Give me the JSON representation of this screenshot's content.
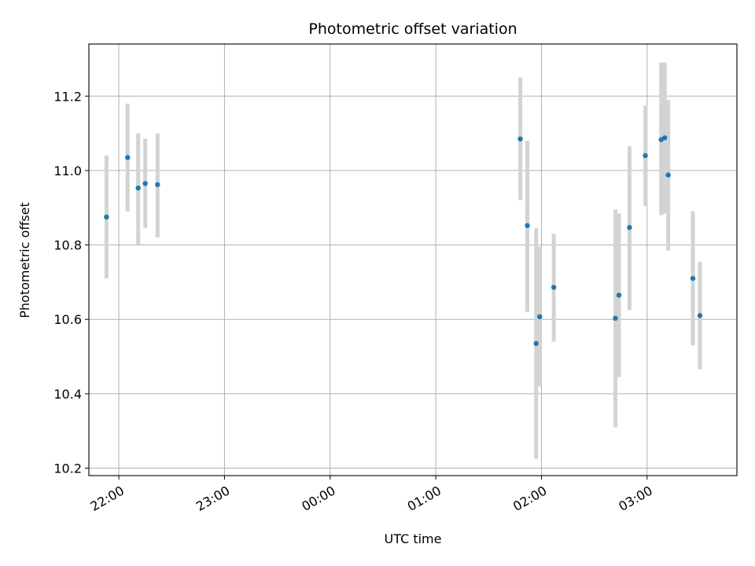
{
  "chart_data": {
    "type": "scatter",
    "title": "Photometric offset variation",
    "xlabel": "UTC time",
    "ylabel": "Photometric offset",
    "grid": true,
    "legend": "none",
    "x_axis": {
      "kind": "time",
      "range": [
        "21:43",
        "03:51"
      ],
      "ticks": [
        "22:00",
        "23:00",
        "00:00",
        "01:00",
        "02:00",
        "03:00"
      ]
    },
    "y_axis": {
      "range": [
        10.18,
        11.34
      ],
      "ticks": [
        10.2,
        10.4,
        10.6,
        10.8,
        11.0,
        11.2
      ],
      "tick_labels": [
        "10.2",
        "10.4",
        "10.6",
        "10.8",
        "11.0",
        "11.2"
      ]
    },
    "colors": {
      "point": "#1f77b4",
      "errorbar": "#d3d3d3",
      "grid": "#b0b0b0"
    },
    "series": [
      {
        "points": [
          {
            "x": "21:53",
            "y": 10.875,
            "ylow": 10.71,
            "yhigh": 11.04
          },
          {
            "x": "22:05",
            "y": 11.035,
            "ylow": 10.89,
            "yhigh": 11.18
          },
          {
            "x": "22:11",
            "y": 10.953,
            "ylow": 10.8,
            "yhigh": 11.1
          },
          {
            "x": "22:15",
            "y": 10.965,
            "ylow": 10.845,
            "yhigh": 11.085
          },
          {
            "x": "22:22",
            "y": 10.962,
            "ylow": 10.82,
            "yhigh": 11.1
          },
          {
            "x": "01:48",
            "y": 11.085,
            "ylow": 10.92,
            "yhigh": 11.25
          },
          {
            "x": "01:52",
            "y": 10.852,
            "ylow": 10.62,
            "yhigh": 11.08
          },
          {
            "x": "01:57",
            "y": 10.535,
            "ylow": 10.225,
            "yhigh": 10.845
          },
          {
            "x": "01:59",
            "y": 10.607,
            "ylow": 10.42,
            "yhigh": 10.795
          },
          {
            "x": "02:07",
            "y": 10.686,
            "ylow": 10.54,
            "yhigh": 10.83
          },
          {
            "x": "02:42",
            "y": 10.603,
            "ylow": 10.31,
            "yhigh": 10.895
          },
          {
            "x": "02:44",
            "y": 10.665,
            "ylow": 10.445,
            "yhigh": 10.885
          },
          {
            "x": "02:50",
            "y": 10.847,
            "ylow": 10.625,
            "yhigh": 11.065
          },
          {
            "x": "02:59",
            "y": 11.04,
            "ylow": 10.905,
            "yhigh": 11.175
          },
          {
            "x": "03:08",
            "y": 11.083,
            "ylow": 10.88,
            "yhigh": 11.29
          },
          {
            "x": "03:10",
            "y": 11.088,
            "ylow": 10.885,
            "yhigh": 11.29
          },
          {
            "x": "03:12",
            "y": 10.988,
            "ylow": 10.785,
            "yhigh": 11.19
          },
          {
            "x": "03:26",
            "y": 10.71,
            "ylow": 10.53,
            "yhigh": 10.89
          },
          {
            "x": "03:30",
            "y": 10.61,
            "ylow": 10.465,
            "yhigh": 10.755
          }
        ]
      }
    ]
  }
}
